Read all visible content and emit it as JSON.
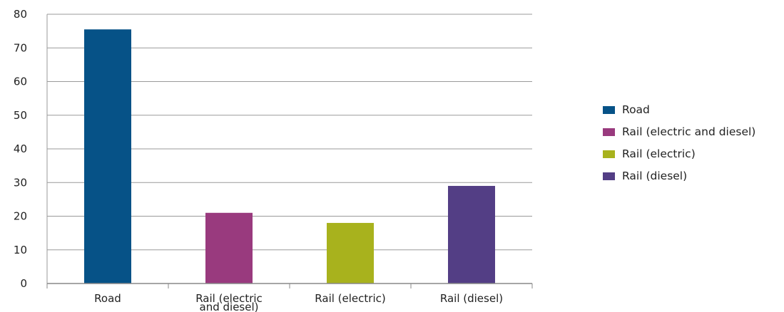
{
  "chart_data": {
    "type": "bar",
    "title": "",
    "xlabel": "",
    "ylabel": "",
    "ylim": [
      0,
      80
    ],
    "yticks": [
      0,
      10,
      20,
      30,
      40,
      50,
      60,
      70,
      80
    ],
    "grid": true,
    "legend_position": "right",
    "categories": [
      [
        "Road"
      ],
      [
        "Rail (electric",
        "and diesel)"
      ],
      [
        "Rail (electric)"
      ],
      [
        "Rail (diesel)"
      ]
    ],
    "values": [
      75.5,
      21,
      18,
      29
    ],
    "colors": [
      "#065287",
      "#993a7e",
      "#a8b21d",
      "#533e85"
    ],
    "legend": [
      "Road",
      "Rail (electric and diesel)",
      "Rail (electric)",
      "Rail (diesel)"
    ]
  }
}
